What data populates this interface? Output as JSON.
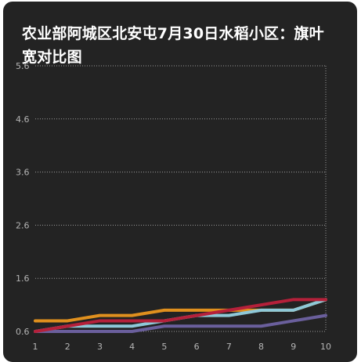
{
  "chart_data": {
    "type": "line",
    "title": "农业部阿城区北安屯7月30日水稻小区：旗叶宽对比图",
    "xlabel": "",
    "ylabel": "",
    "x": [
      1,
      2,
      3,
      4,
      5,
      6,
      7,
      8,
      9,
      10
    ],
    "x_tick_labels": [
      "1",
      "2",
      "3",
      "4",
      "5",
      "6",
      "7",
      "8",
      "9",
      "10"
    ],
    "y_ticks": [
      0.6,
      1.6,
      2.6,
      3.6,
      4.6,
      5.6
    ],
    "y_tick_labels": [
      "0.6",
      "1.6",
      "2.6",
      "3.6",
      "4.6",
      "5.6"
    ],
    "ylim": [
      0.6,
      5.6
    ],
    "grid": true,
    "series": [
      {
        "color": "#e0901e",
        "values": [
          0.8,
          0.8,
          0.9,
          0.9,
          1.0,
          1.0,
          1.0,
          1.0,
          1.0,
          1.2
        ]
      },
      {
        "color": "#8ec8d8",
        "values": [
          0.6,
          0.7,
          0.7,
          0.7,
          0.8,
          0.9,
          0.9,
          1.0,
          1.0,
          1.2
        ]
      },
      {
        "color": "#6a5f9c",
        "values": [
          0.6,
          0.6,
          0.6,
          0.6,
          0.7,
          0.7,
          0.7,
          0.7,
          0.8,
          0.9
        ]
      },
      {
        "color": "#b5203a",
        "values": [
          0.6,
          0.7,
          0.8,
          0.8,
          0.8,
          0.9,
          1.0,
          1.1,
          1.2,
          1.2
        ]
      }
    ]
  }
}
